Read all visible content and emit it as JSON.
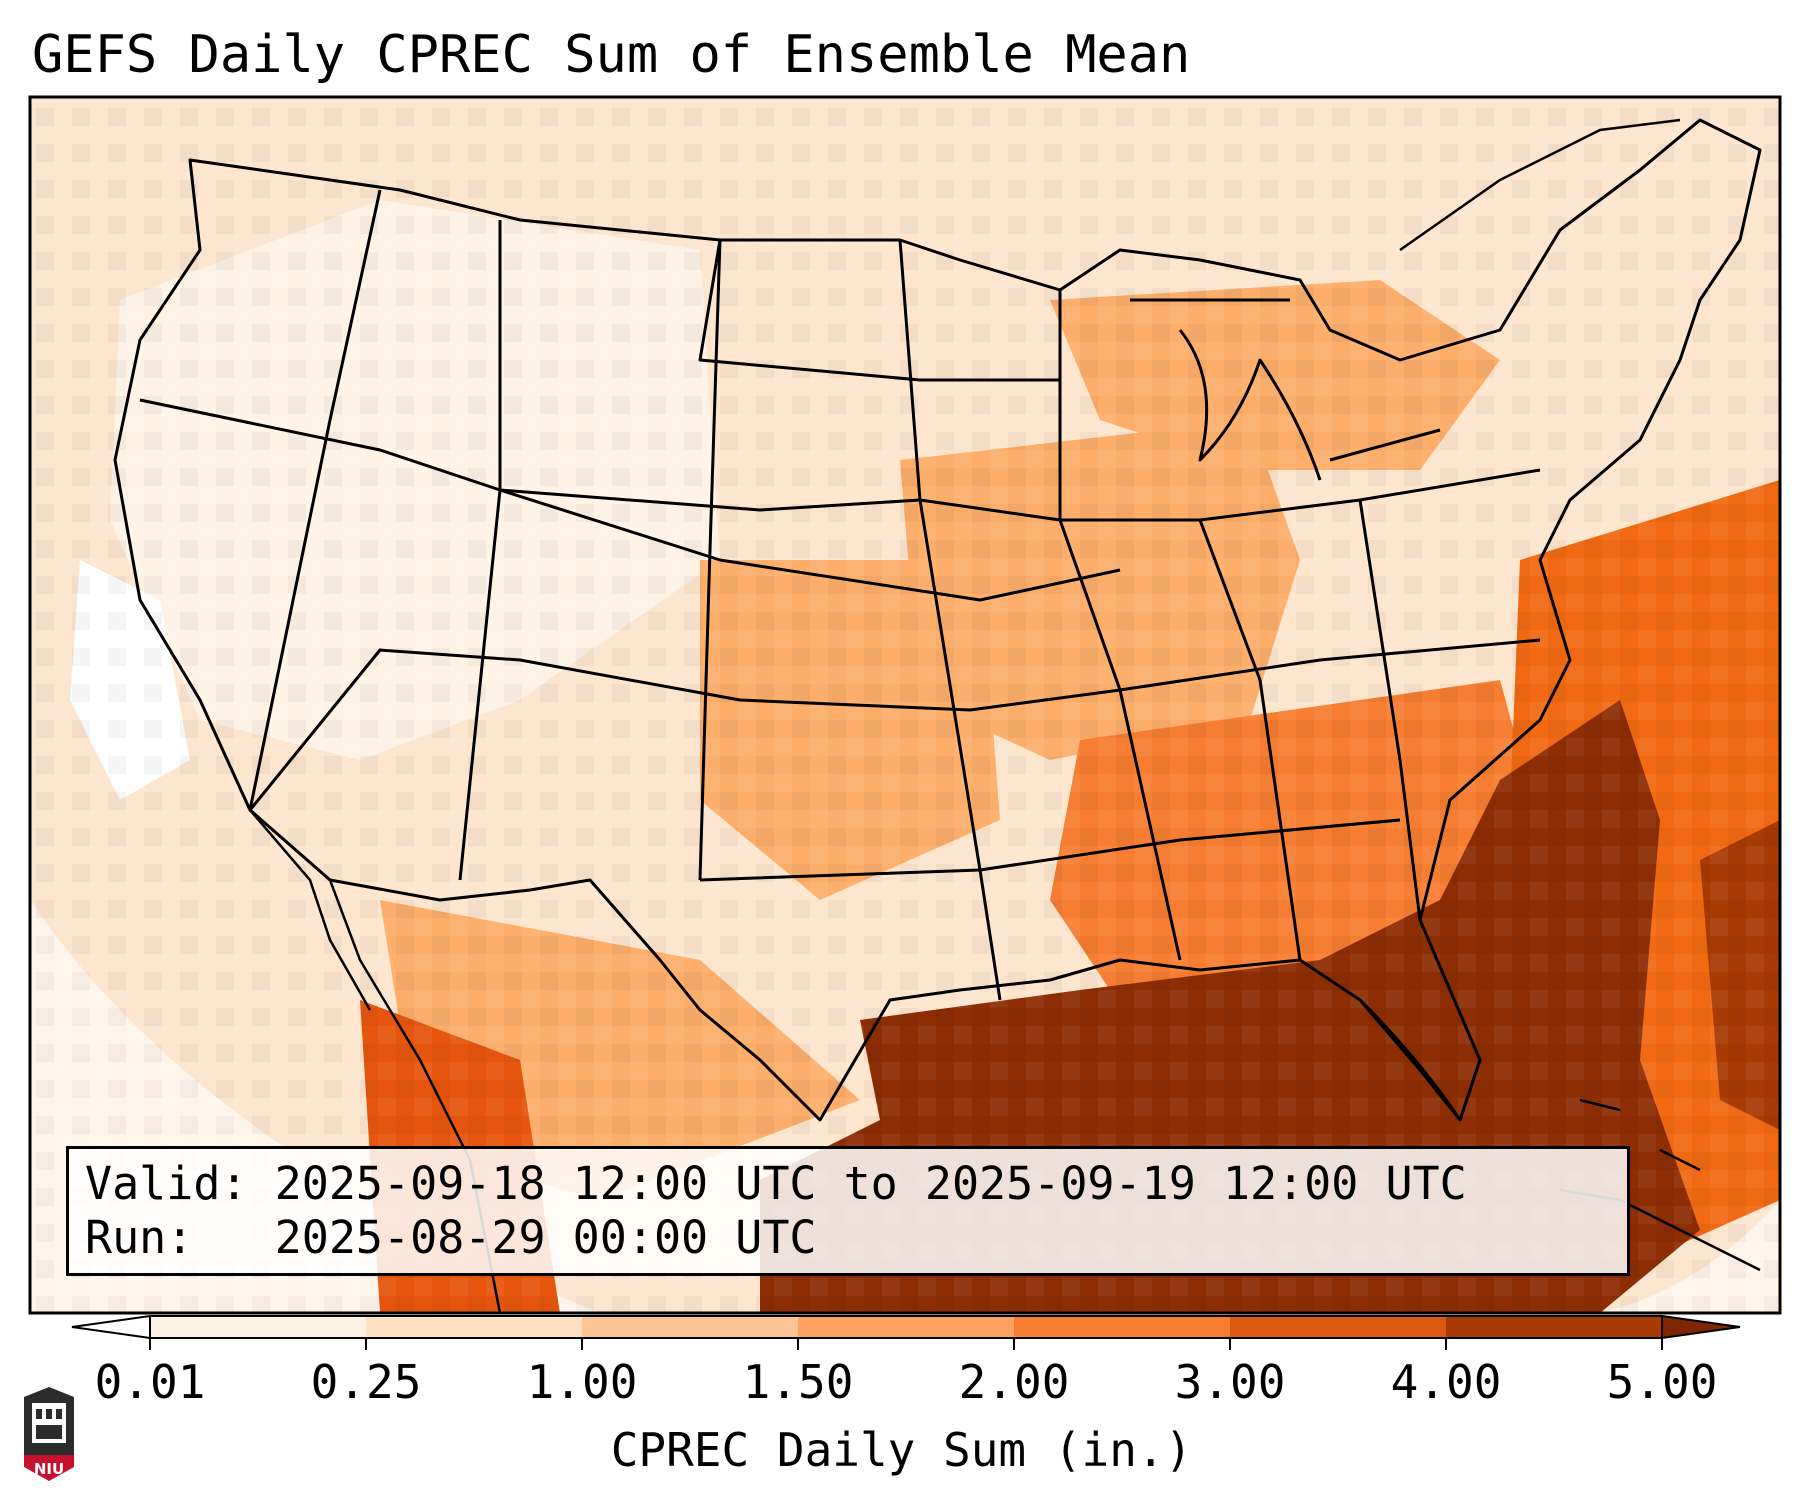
{
  "title": "GEFS Daily CPREC Sum of Ensemble Mean",
  "info": {
    "valid_label": "Valid:",
    "valid_value": "2025-09-18 12:00 UTC to 2025-09-19 12:00 UTC",
    "run_label": "Run:",
    "run_value": "2025-08-29 00:00 UTC"
  },
  "colorbar": {
    "label": "CPREC Daily Sum (in.)",
    "ticks": [
      "0.01",
      "0.25",
      "1.00",
      "1.50",
      "2.00",
      "3.00",
      "4.00",
      "5.00"
    ],
    "colors": [
      "#fff3e6",
      "#fee0c2",
      "#fdc495",
      "#fda262",
      "#f67d32",
      "#dd5810",
      "#a83a04"
    ],
    "under_color": "#ffffff",
    "over_color": "#7f2704"
  },
  "logo": {
    "text": "NIU",
    "color": "#c8102e"
  },
  "map": {
    "region": "Continental United States",
    "feature_colors": {
      "low": "#fee6ce",
      "moderate": "#fdae6b",
      "high": "#e6550d",
      "very_high": "#8c2d04",
      "ocean_outside": "#fff5eb",
      "state_lines": "#000000"
    }
  }
}
